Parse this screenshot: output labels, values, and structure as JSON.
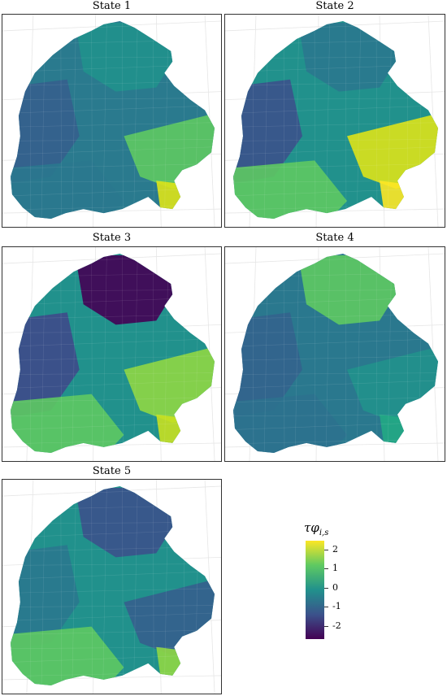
{
  "figure": {
    "panels": [
      {
        "title": "State 1",
        "base": "#2a7a8e",
        "north": "#20918c",
        "south": "#2a788e",
        "southeast": "#5ec962",
        "hot": "#dde318",
        "west": "#355f8d"
      },
      {
        "title": "State 2",
        "base": "#21918c",
        "north": "#2a788e",
        "south": "#5ec962",
        "southeast": "#dde318",
        "hot": "#fde725",
        "west": "#3b528b"
      },
      {
        "title": "State 3",
        "base": "#21918c",
        "north": "#440154",
        "south": "#5ec962",
        "southeast": "#8fd744",
        "hot": "#c8e020",
        "west": "#3e4a89"
      },
      {
        "title": "State 4",
        "base": "#2a788e",
        "north": "#5ec962",
        "south": "#2c718e",
        "southeast": "#21918c",
        "hot": "#22a884",
        "west": "#33638d"
      },
      {
        "title": "State 5",
        "base": "#21918c",
        "north": "#3b528b",
        "south": "#5ec962",
        "southeast": "#355f8d",
        "hot": "#8fd744",
        "west": "#2a788e"
      }
    ]
  },
  "legend": {
    "title": "τφ",
    "subscript": "i,s",
    "ticks": [
      "2",
      "1",
      "0",
      "-1",
      "-2"
    ],
    "colors": [
      "#440154",
      "#3b528b",
      "#21918c",
      "#5ec962",
      "#fde725"
    ]
  }
}
